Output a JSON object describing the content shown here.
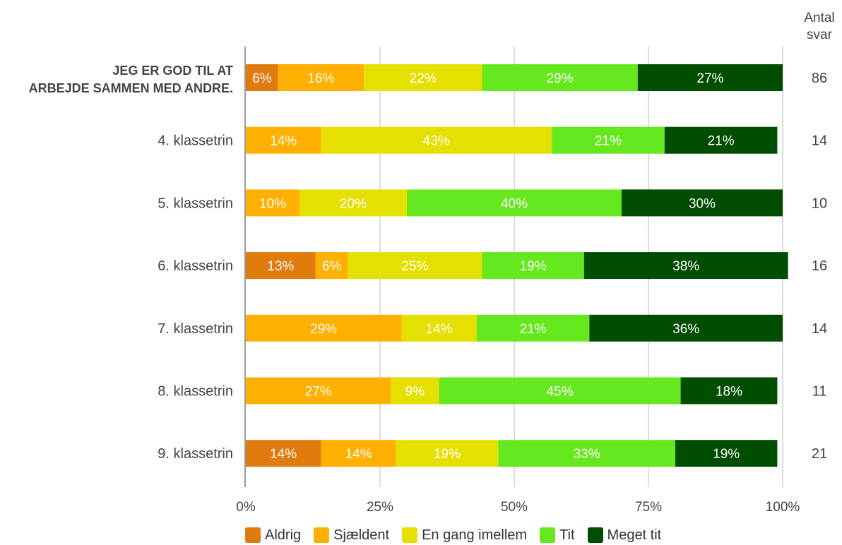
{
  "count_header": {
    "line1": "Antal",
    "line2": "svar"
  },
  "chart_data": {
    "type": "bar",
    "orientation": "horizontal",
    "stacked": true,
    "categories": [
      "JEG ER GOD TIL AT ARBEJDE SAMMEN MED ANDRE.",
      "4. klassetrin",
      "5. klassetrin",
      "6. klassetrin",
      "7. klassetrin",
      "8. klassetrin",
      "9. klassetrin"
    ],
    "series": [
      {
        "name": "Aldrig",
        "color": "#e07b0e",
        "values": [
          6,
          0,
          0,
          13,
          0,
          0,
          14
        ]
      },
      {
        "name": "Sjældent",
        "color": "#ffb000",
        "values": [
          16,
          14,
          10,
          6,
          29,
          27,
          14
        ]
      },
      {
        "name": "En gang imellem",
        "color": "#e5e000",
        "values": [
          22,
          43,
          20,
          25,
          14,
          9,
          19
        ]
      },
      {
        "name": "Tit",
        "color": "#66e81e",
        "values": [
          29,
          21,
          40,
          19,
          21,
          45,
          33
        ]
      },
      {
        "name": "Meget tit",
        "color": "#004d00",
        "values": [
          27,
          21,
          30,
          38,
          36,
          18,
          19
        ]
      }
    ],
    "counts": [
      86,
      14,
      10,
      16,
      14,
      11,
      21
    ],
    "xticks": [
      "0%",
      "25%",
      "50%",
      "75%",
      "100%"
    ],
    "xlim": [
      0,
      100
    ],
    "grid": true,
    "legend_position": "bottom"
  }
}
